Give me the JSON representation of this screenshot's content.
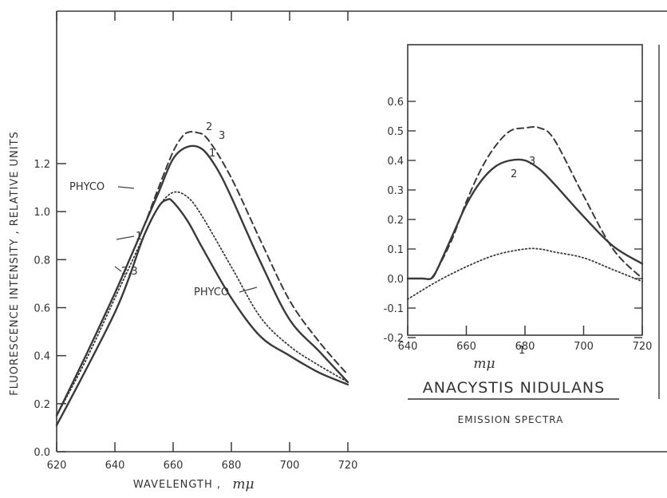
{
  "chart_data": [
    {
      "type": "line",
      "ylabel": "FLUORESCENCE INTENSITY , RELATIVE UNITS",
      "xlabel_prefix": "WAVELENGTH ,",
      "xlabel_unit": "mμ",
      "xlim": [
        620,
        720
      ],
      "ylim": [
        0.0,
        1.4
      ],
      "x_ticks": [
        620,
        640,
        660,
        680,
        700,
        720
      ],
      "x_tick_labels": [
        "620",
        "640",
        "660",
        "680",
        "700",
        "720"
      ],
      "y_ticks": [
        0.0,
        0.2,
        0.4,
        0.6,
        0.8,
        1.0,
        1.2
      ],
      "y_tick_labels": [
        "0.0",
        "0.2",
        "0.4",
        "0.6",
        "0.8",
        "1.0",
        "1.2"
      ],
      "grid": false,
      "series": [
        {
          "name": "PHYCO",
          "style": "solid",
          "x": [
            620,
            630,
            640,
            645,
            650,
            655,
            658,
            660,
            665,
            670,
            680,
            690,
            700,
            710,
            720
          ],
          "y": [
            0.11,
            0.34,
            0.58,
            0.73,
            0.9,
            1.02,
            1.05,
            1.04,
            0.96,
            0.85,
            0.64,
            0.48,
            0.4,
            0.33,
            0.28
          ]
        },
        {
          "name": "1",
          "style": "dotted",
          "x": [
            620,
            630,
            640,
            645,
            650,
            655,
            660,
            665,
            670,
            680,
            690,
            700,
            710,
            720
          ],
          "y": [
            0.15,
            0.38,
            0.64,
            0.77,
            0.9,
            1.02,
            1.08,
            1.06,
            0.98,
            0.77,
            0.56,
            0.44,
            0.36,
            0.29
          ]
        },
        {
          "name": "2",
          "style": "solid",
          "x": [
            620,
            630,
            640,
            645,
            650,
            655,
            660,
            665,
            670,
            675,
            680,
            690,
            700,
            710,
            720
          ],
          "y": [
            0.15,
            0.4,
            0.66,
            0.8,
            0.94,
            1.08,
            1.22,
            1.27,
            1.26,
            1.18,
            1.06,
            0.79,
            0.55,
            0.42,
            0.29
          ]
        },
        {
          "name": "3",
          "style": "dashed",
          "x": [
            620,
            630,
            640,
            645,
            650,
            655,
            660,
            663,
            665,
            668,
            672,
            680,
            690,
            700,
            710,
            720
          ],
          "y": [
            0.15,
            0.4,
            0.66,
            0.8,
            0.94,
            1.1,
            1.25,
            1.31,
            1.33,
            1.33,
            1.3,
            1.14,
            0.88,
            0.63,
            0.46,
            0.32
          ]
        }
      ],
      "annotations": [
        "PHYCO",
        "PHYCO",
        "1",
        "2,3",
        "1",
        "2",
        "3"
      ]
    },
    {
      "type": "line",
      "xlabel_unit": "mμ",
      "xlim": [
        640,
        720
      ],
      "ylim": [
        -0.2,
        0.7
      ],
      "x_ticks": [
        640,
        660,
        680,
        700,
        720
      ],
      "x_tick_labels": [
        "640",
        "660",
        "680",
        "700",
        "720"
      ],
      "y_ticks": [
        -0.2,
        -0.1,
        0.0,
        0.1,
        0.2,
        0.3,
        0.4,
        0.5,
        0.6
      ],
      "y_tick_labels": [
        "-0.2",
        "-0.1",
        "0.0",
        "0.1",
        "0.2",
        "0.3",
        "0.4",
        "0.5",
        "0.6"
      ],
      "grid": false,
      "series": [
        {
          "name": "1",
          "style": "dotted",
          "x": [
            640,
            650,
            660,
            670,
            680,
            685,
            690,
            700,
            710,
            720
          ],
          "y": [
            -0.07,
            -0.01,
            0.04,
            0.08,
            0.1,
            0.1,
            0.09,
            0.07,
            0.03,
            -0.01
          ]
        },
        {
          "name": "2",
          "style": "solid",
          "x": [
            640,
            645,
            648,
            650,
            655,
            660,
            665,
            670,
            675,
            680,
            685,
            690,
            700,
            710,
            720
          ],
          "y": [
            0.0,
            0.0,
            0.0,
            0.03,
            0.14,
            0.25,
            0.33,
            0.38,
            0.4,
            0.4,
            0.37,
            0.32,
            0.21,
            0.11,
            0.05
          ]
        },
        {
          "name": "3",
          "style": "dashed",
          "x": [
            648,
            650,
            655,
            660,
            665,
            670,
            675,
            680,
            685,
            690,
            700,
            710,
            720
          ],
          "y": [
            0.0,
            0.03,
            0.13,
            0.26,
            0.37,
            0.45,
            0.5,
            0.51,
            0.51,
            0.47,
            0.28,
            0.1,
            0.0
          ]
        }
      ],
      "annotations": [
        "1",
        "2",
        "3"
      ],
      "title": "ANACYSTIS NIDULANS",
      "subtitle": "EMISSION SPECTRA"
    }
  ]
}
